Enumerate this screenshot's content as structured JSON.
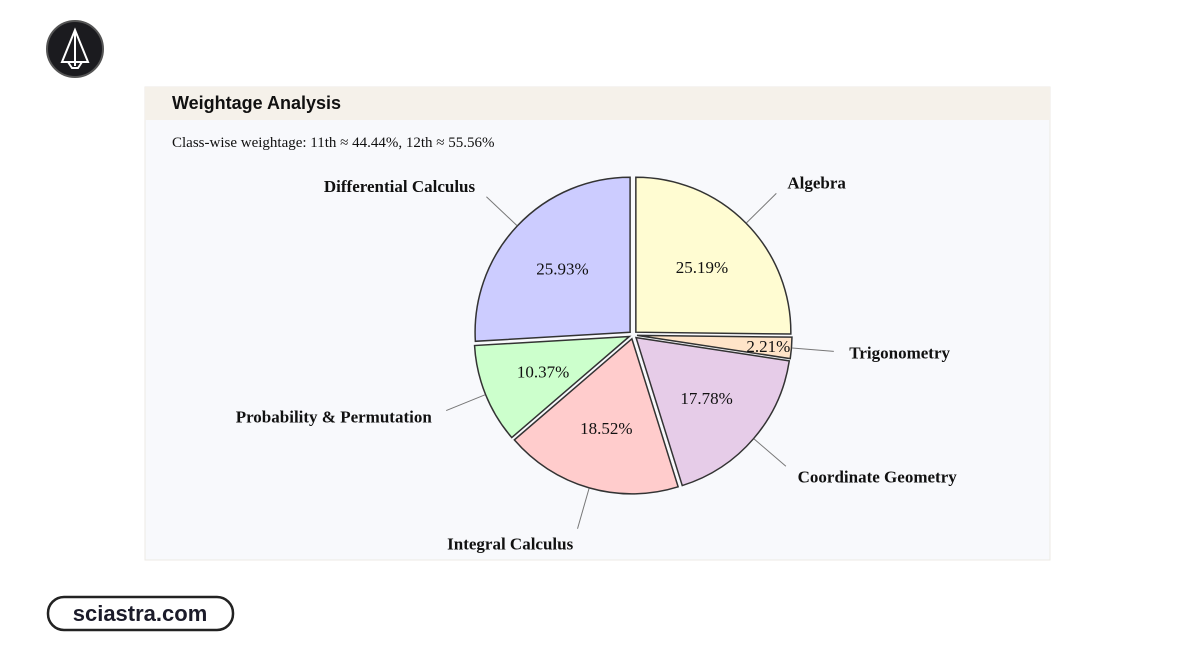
{
  "brand": "sciastra.com",
  "panel_title": "Weightage Analysis",
  "chart_data": {
    "type": "pie",
    "subtitle": "Class-wise weightage: 11th ≈ 44.44%, 12th ≈ 55.56%",
    "categories": [
      "Algebra",
      "Trigonometry",
      "Coordinate Geometry",
      "Integral Calculus",
      "Probability & Permutation",
      "Differential Calculus"
    ],
    "values": [
      25.19,
      2.21,
      17.78,
      18.52,
      10.37,
      25.93
    ],
    "value_labels": [
      "25.19%",
      "2.21%",
      "17.78%",
      "18.52%",
      "10.37%",
      "25.93%"
    ],
    "colors": [
      "#fffcd2",
      "#ffe4c8",
      "#e6cce8",
      "#ffcccc",
      "#ccffcc",
      "#ccccff"
    ]
  }
}
